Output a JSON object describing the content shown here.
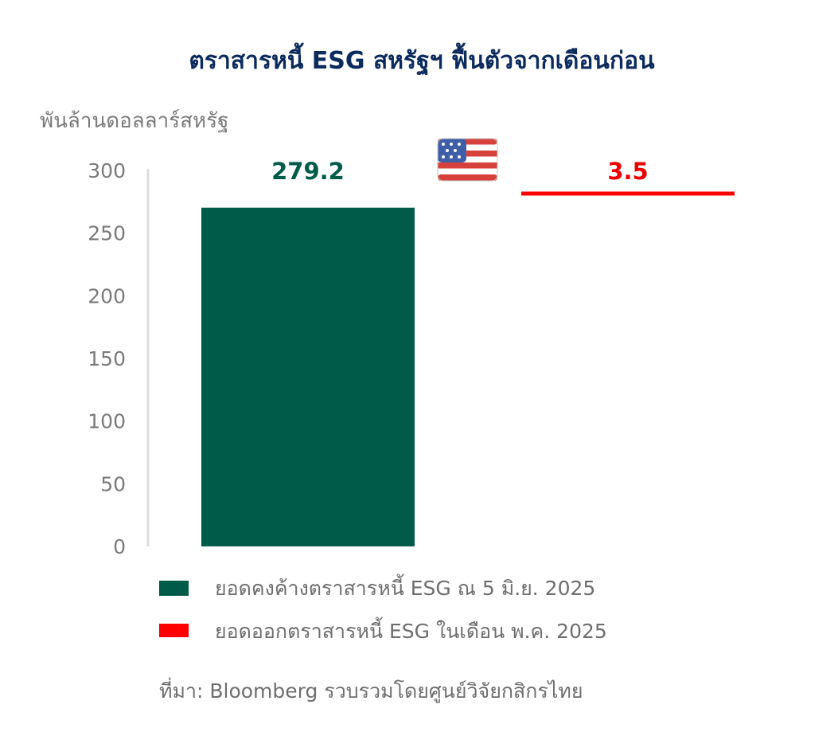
{
  "chart_data": {
    "type": "bar",
    "title": "ตราสารหนี้ ESG สหรัฐฯ ฟื้นตัวจากเดือนก่อน",
    "ylabel": "พันล้านดอลลาร์สหรัฐ",
    "xlabel": "",
    "ylim": [
      0,
      300
    ],
    "yticks": [
      0,
      50,
      100,
      150,
      200,
      250,
      300
    ],
    "grid": false,
    "legend_position": "bottom",
    "series": [
      {
        "name": "ยอดคงค้างตราสารหนี้ ESG ณ 5 มิ.ย. 2025",
        "value": 279.2,
        "label": "279.2",
        "color": "#005b48",
        "style": "bar"
      },
      {
        "name": "ยอดออกตราสารหนี้ ESG ในเดือน พ.ค. 2025",
        "value": 3.5,
        "label": "3.5",
        "color": "#ff0000",
        "style": "thin-bar"
      }
    ],
    "icon": "us-flag-icon",
    "source": "ที่มา: Bloomberg รวบรวมโดยศูนย์วิจัยกสิกรไทย"
  }
}
